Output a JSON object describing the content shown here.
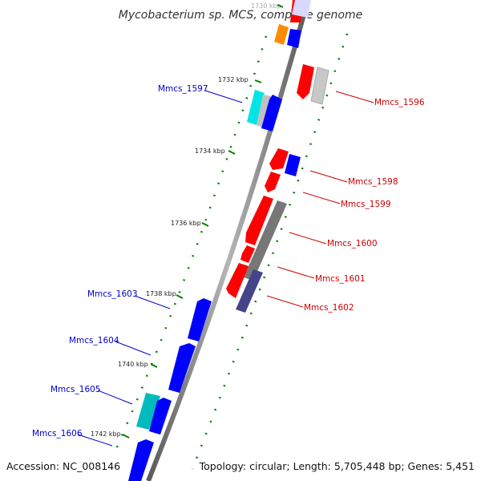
{
  "title": "Mycobacterium sp. MCS, complete genome",
  "footer": {
    "accession": "Accession: NC_008146",
    "topology": "Topology: circular; Length: 5,705,448 bp; Genes: 5,451"
  },
  "scale_labels": [
    "1730 kbp",
    "1732 kbp",
    "1734 kbp",
    "1736 kbp",
    "1738 kbp",
    "1740 kbp",
    "1742 kbp"
  ],
  "genes_left": [
    "Mmcs_1597",
    "Mmcs_1603",
    "Mmcs_1604",
    "Mmcs_1605",
    "Mmcs_1606"
  ],
  "genes_right": [
    "Mmcs_1596",
    "Mmcs_1598",
    "Mmcs_1599",
    "Mmcs_1600",
    "Mmcs_1601",
    "Mmcs_1602"
  ],
  "colors": {
    "left_label": "#0000cc",
    "right_label": "#cc0000",
    "forward_gene": "#0000ff",
    "reverse_gene": "#ff0000",
    "backbone": "#808080",
    "tick": "#008000",
    "cyan_gene": "#00cccc",
    "orange_gene": "#ff8c00"
  }
}
